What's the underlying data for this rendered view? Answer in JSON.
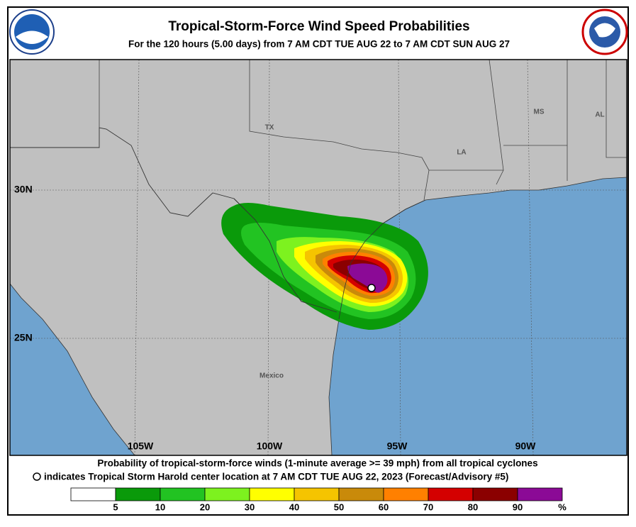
{
  "header": {
    "title": "Tropical-Storm-Force Wind Speed Probabilities",
    "subtitle": "For the 120 hours (5.00 days) from 7 AM CDT TUE AUG 22 to 7 AM CDT SUN AUG 27"
  },
  "map": {
    "latitude_labels": [
      "30N",
      "25N"
    ],
    "longitude_labels": [
      "105W",
      "100W",
      "95W",
      "90W"
    ],
    "place_labels": [
      "TX",
      "LA",
      "MS",
      "AL",
      "Mexico"
    ]
  },
  "footer": {
    "line1": "Probability of tropical-storm-force winds (1-minute average >= 39 mph) from all tropical cyclones",
    "line2": "indicates Tropical Storm Harold center location at 7 AM CDT TUE AUG 22, 2023 (Forecast/Advisory #5)"
  },
  "legend": {
    "ticks": [
      5,
      10,
      20,
      30,
      40,
      50,
      60,
      70,
      80,
      90
    ],
    "unit": "%",
    "colors": [
      "#ffffff",
      "#0a9a0a",
      "#22c322",
      "#7df21f",
      "#ffff00",
      "#f5c400",
      "#c98a0a",
      "#ff8000",
      "#d40000",
      "#8b0000",
      "#8b0a96"
    ]
  }
}
